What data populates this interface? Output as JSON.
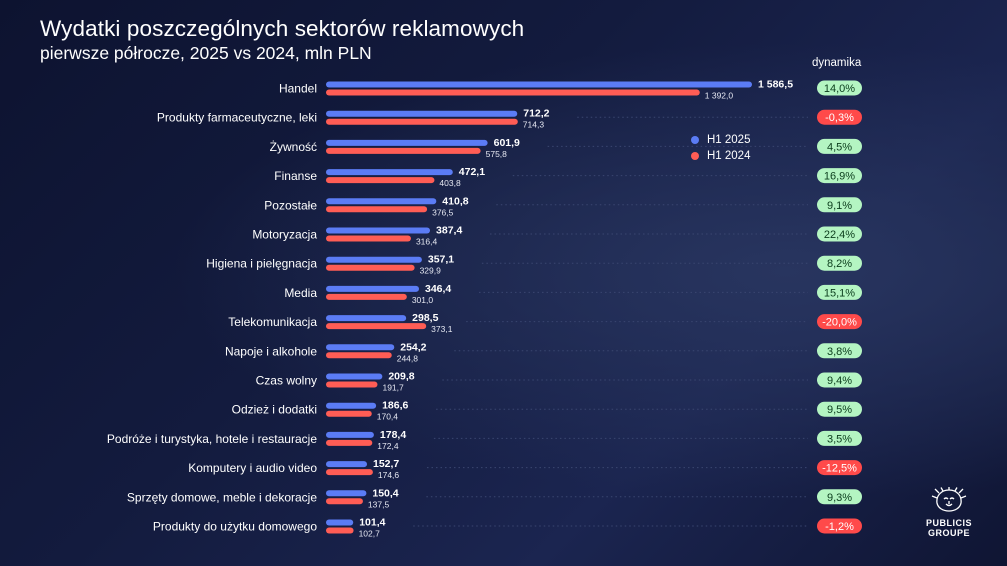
{
  "header": {
    "title": "Wydatki poszczególnych sektorów reklamowych",
    "subtitle": "pierwsze półrocze, 2025 vs 2024, mln PLN",
    "dynamics_label": "dynamika"
  },
  "legend": {
    "items": [
      {
        "label": "H1 2025",
        "color": "#5b7cf5"
      },
      {
        "label": "H1 2024",
        "color": "#ff5d55"
      }
    ]
  },
  "colors": {
    "series_2025": "#5b7cf5",
    "series_2024": "#ff5d55",
    "badge_positive": "#b4f5c2",
    "badge_positive_text": "#0b3d1c",
    "badge_negative": "#ff4a4a",
    "badge_negative_text": "#ffffff"
  },
  "chart_data": {
    "type": "bar",
    "orientation": "horizontal",
    "categories": [
      "Handel",
      "Produkty farmaceutyczne, leki",
      "Żywność",
      "Finanse",
      "Pozostałe",
      "Motoryzacja",
      "Higiena i pielęgnacja",
      "Media",
      "Telekomunikacja",
      "Napoje i alkohole",
      "Czas wolny",
      "Odzież i dodatki",
      "Podróże i turystyka, hotele i restauracje",
      "Komputery i audio video",
      "Sprzęty domowe, meble i dekoracje",
      "Produkty do użytku domowego"
    ],
    "series": [
      {
        "name": "H1 2025",
        "values": [
          1586.5,
          712.2,
          601.9,
          472.1,
          410.8,
          387.4,
          357.1,
          346.4,
          298.5,
          254.2,
          209.8,
          186.6,
          178.4,
          152.7,
          150.4,
          101.4
        ],
        "labels": [
          "1 586,5",
          "712,2",
          "601,9",
          "472,1",
          "410,8",
          "387,4",
          "357,1",
          "346,4",
          "298,5",
          "254,2",
          "209,8",
          "186,6",
          "178,4",
          "152,7",
          "150,4",
          "101,4"
        ]
      },
      {
        "name": "H1 2024",
        "values": [
          1392.0,
          714.3,
          575.8,
          403.8,
          376.5,
          316.4,
          329.9,
          301.0,
          373.1,
          244.8,
          191.7,
          170.4,
          172.4,
          174.6,
          137.5,
          102.7
        ],
        "labels": [
          "1 392,0",
          "714,3",
          "575,8",
          "403,8",
          "376,5",
          "316,4",
          "329,9",
          "301,0",
          "373,1",
          "244,8",
          "191,7",
          "170,4",
          "172,4",
          "174,6",
          "137,5",
          "102,7"
        ]
      }
    ],
    "dynamics": [
      "14,0%",
      "-0,3%",
      "4,5%",
      "16,9%",
      "9,1%",
      "22,4%",
      "8,2%",
      "15,1%",
      "-20,0%",
      "3,8%",
      "9,4%",
      "9,5%",
      "3,5%",
      "-12,5%",
      "9,3%",
      "-1,2%"
    ],
    "dynamics_positive": [
      true,
      false,
      true,
      true,
      true,
      true,
      true,
      true,
      false,
      true,
      true,
      true,
      true,
      false,
      true,
      false
    ],
    "xlim": [
      0,
      1586.5
    ],
    "grid": false,
    "legend_position": "top-right"
  },
  "logo": {
    "line1": "PUBLICIS",
    "line2": "GROUPE"
  }
}
